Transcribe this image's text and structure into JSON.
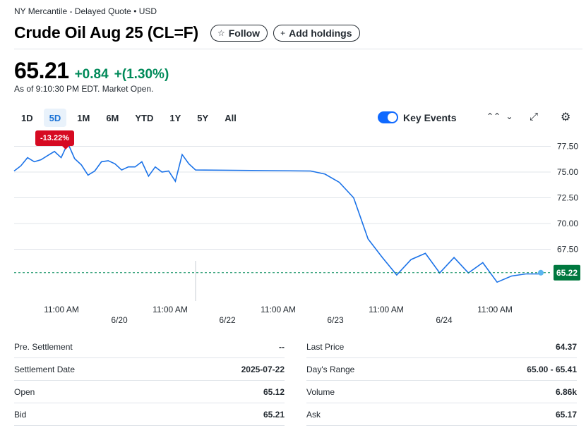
{
  "header": {
    "exchange_line": "NY Mercantile - Delayed Quote • USD",
    "title": "Crude Oil Aug 25 (CL=F)",
    "follow_label": "Follow",
    "add_holdings_label": "Add holdings"
  },
  "quote": {
    "price": "65.21",
    "change": "+0.84",
    "change_pct": "+(1.30%)",
    "as_of": "As of 9:10:30 PM EDT. Market Open."
  },
  "ranges": [
    "1D",
    "5D",
    "1M",
    "6M",
    "YTD",
    "1Y",
    "5Y",
    "All"
  ],
  "active_range": "5D",
  "controls": {
    "key_events_label": "Key Events",
    "key_events_on": true
  },
  "badge": {
    "text": "-13.22%",
    "color": "#d60a22"
  },
  "colors": {
    "line": "#1a72e8",
    "up": "#008a59",
    "down": "#d60a22",
    "price_tag": "#00783f"
  },
  "chart_data": {
    "type": "line",
    "yticks": [
      77.5,
      75.0,
      72.5,
      70.0,
      67.5
    ],
    "ylim": [
      62.0,
      80.1
    ],
    "price_line": 65.22,
    "price_tag": "65.22",
    "time_labels": [
      "11:00 AM",
      "11:00 AM",
      "11:00 AM",
      "11:00 AM",
      "11:00 AM"
    ],
    "date_labels": [
      "6/20",
      "6/22",
      "6/23",
      "6/24"
    ],
    "series": [
      {
        "values": [
          75.1,
          75.6,
          76.4,
          76.0,
          76.2,
          76.6,
          77.0,
          76.4,
          77.8,
          76.3,
          75.7,
          74.7,
          75.1,
          76.0,
          76.1,
          75.8,
          75.2,
          75.5,
          75.5,
          76.0,
          74.6,
          75.5,
          75.0,
          75.1,
          74.1,
          76.7,
          75.8,
          75.2,
          75.1,
          74.8,
          74.0,
          72.5,
          68.5,
          66.7,
          65.0,
          66.5,
          67.1,
          65.2,
          66.7,
          65.2,
          66.2,
          64.3,
          64.9,
          65.1,
          65.1
        ]
      }
    ],
    "grid": true
  },
  "stats": {
    "left": [
      {
        "label": "Pre. Settlement",
        "value": "--"
      },
      {
        "label": "Settlement Date",
        "value": "2025-07-22"
      },
      {
        "label": "Open",
        "value": "65.12"
      },
      {
        "label": "Bid",
        "value": "65.21"
      }
    ],
    "right": [
      {
        "label": "Last Price",
        "value": "64.37"
      },
      {
        "label": "Day's Range",
        "value": "65.00 - 65.41"
      },
      {
        "label": "Volume",
        "value": "6.86k"
      },
      {
        "label": "Ask",
        "value": "65.17"
      }
    ]
  }
}
